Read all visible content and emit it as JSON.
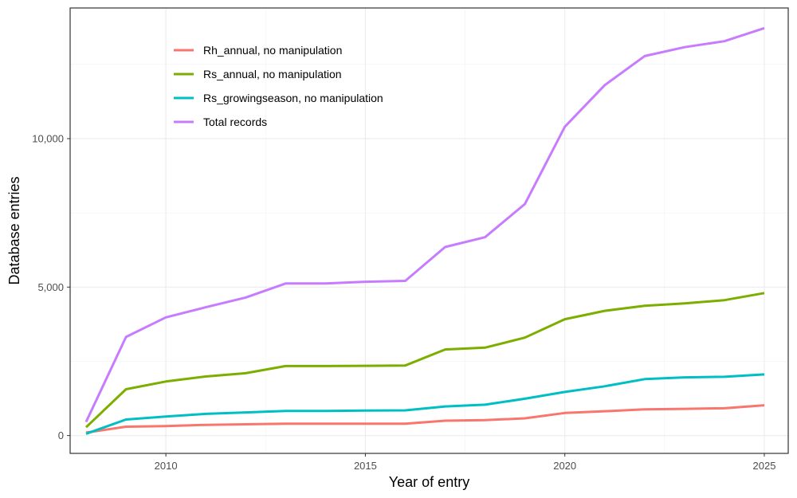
{
  "chart_data": {
    "type": "line",
    "xlabel": "Year of entry",
    "ylabel": "Database entries",
    "x": [
      2008,
      2009,
      2010,
      2011,
      2012,
      2013,
      2014,
      2015,
      2016,
      2017,
      2018,
      2019,
      2020,
      2021,
      2022,
      2023,
      2024,
      2025
    ],
    "xlim": [
      2007.6,
      2025.6
    ],
    "ylim": [
      -600,
      14400
    ],
    "xticks": [
      2010,
      2015,
      2020,
      2025
    ],
    "xtick_labels": [
      "2010",
      "2015",
      "2020",
      "2025"
    ],
    "yticks": [
      0,
      5000,
      10000
    ],
    "ytick_labels": [
      "0",
      "5,000",
      "10,000"
    ],
    "grid": true,
    "legend_position": "top-left-inside",
    "series": [
      {
        "name": "Rh_annual, no manipulation",
        "color": "#F8766D",
        "values": [
          100,
          300,
          320,
          360,
          380,
          400,
          400,
          400,
          400,
          500,
          520,
          580,
          760,
          820,
          880,
          900,
          920,
          1020
        ]
      },
      {
        "name": "Rs_annual, no manipulation",
        "color": "#7CAE00",
        "values": [
          280,
          1560,
          1820,
          1990,
          2100,
          2340,
          2340,
          2350,
          2360,
          2900,
          2960,
          3300,
          3920,
          4200,
          4370,
          4450,
          4560,
          4800
        ]
      },
      {
        "name": "Rs_growingseason, no manipulation",
        "color": "#00BFC4",
        "values": [
          60,
          540,
          640,
          730,
          780,
          830,
          830,
          840,
          850,
          980,
          1040,
          1240,
          1470,
          1660,
          1900,
          1960,
          1980,
          2060
        ]
      },
      {
        "name": "Total records",
        "color": "#C77CFF",
        "values": [
          460,
          3320,
          3980,
          4320,
          4650,
          5120,
          5120,
          5180,
          5210,
          6350,
          6680,
          7800,
          10400,
          11800,
          12780,
          13080,
          13280,
          13720
        ]
      }
    ]
  }
}
